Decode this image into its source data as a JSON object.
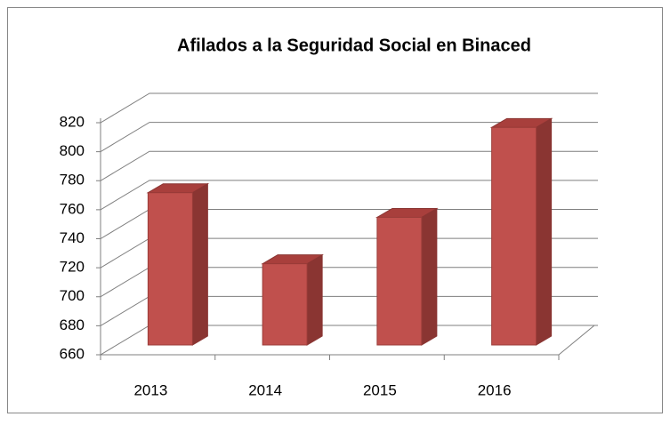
{
  "chart_data": {
    "type": "bar3d",
    "title": "Afilados a la Seguridad Social en Binaced",
    "categories": [
      "2013",
      "2014",
      "2015",
      "2016"
    ],
    "values": [
      765,
      716,
      748,
      810
    ],
    "color": "#c0504d",
    "title_color": "#00b050",
    "ylim": [
      660,
      820
    ],
    "yticks": [
      660,
      680,
      700,
      720,
      740,
      760,
      780,
      800,
      820
    ],
    "grid": true
  }
}
